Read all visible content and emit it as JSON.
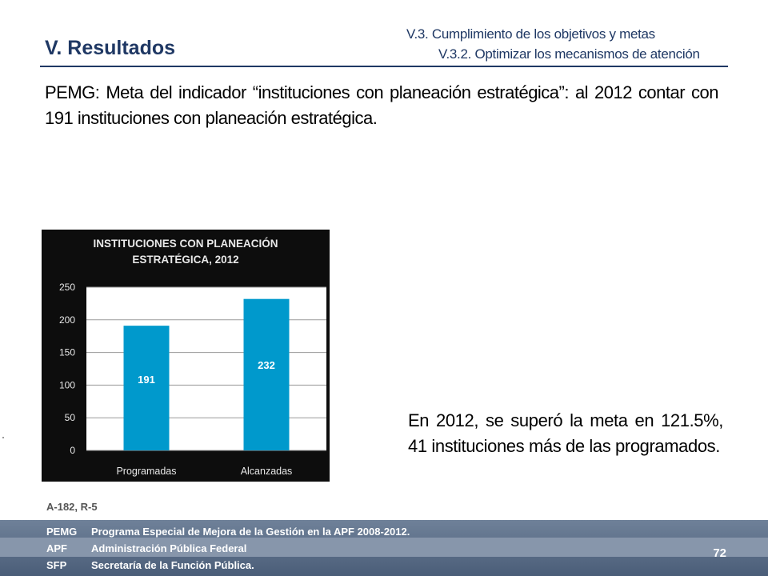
{
  "header": {
    "title": "V. Resultados",
    "section_1": "V.3. Cumplimiento de los objetivos y metas",
    "section_2": "V.3.2. Optimizar los mecanismos de atención"
  },
  "heading_text": "PEMG: Meta del indicador “instituciones con planeación estratégica”: al 2012 contar con 191 instituciones con planeación estratégica.",
  "chart_data": {
    "type": "bar",
    "title_line1": "INSTITUCIONES CON PLANEACIÓN",
    "title_line2": "ESTRATÉGICA, 2012",
    "categories": [
      "Programadas",
      "Alcanzadas"
    ],
    "values": [
      191,
      232
    ],
    "data_labels": [
      "191",
      "232"
    ],
    "ylim": [
      0,
      250
    ],
    "yticks": [
      "0",
      "50",
      "100",
      "150",
      "200",
      "250"
    ],
    "bar_color": "#0099cc",
    "grid": true,
    "legend": "none"
  },
  "summary_text": "En 2012, se superó la meta en 121.5%, 41 instituciones más de las programados.",
  "source_note": "A-182, R-5",
  "footer": {
    "rows": [
      {
        "abbr": "PEMG",
        "text": "Programa Especial de Mejora de la Gestión en la APF 2008-2012."
      },
      {
        "abbr": "APF",
        "text": "Administración Pública Federal"
      },
      {
        "abbr": "SFP",
        "text": "Secretaría de la  Función Pública."
      }
    ],
    "page_number": "72"
  }
}
